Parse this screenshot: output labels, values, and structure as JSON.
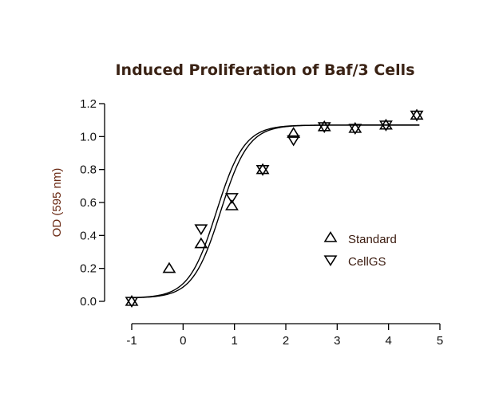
{
  "chart_data": {
    "type": "scatter",
    "title": "Induced Proliferation of Baf/3 Cells",
    "xlabel": "",
    "ylabel": "OD (595 nm)",
    "xlim": [
      -1,
      5
    ],
    "ylim": [
      0,
      1.2
    ],
    "x_ticks": [
      "-1",
      "0",
      "1",
      "2",
      "3",
      "4",
      "5"
    ],
    "y_ticks": [
      "0.0",
      "0.2",
      "0.4",
      "0.6",
      "0.8",
      "1.0",
      "1.2"
    ],
    "legend_position": "right",
    "series": [
      {
        "name": "Standard",
        "marker": "triangle-up",
        "points": [
          {
            "x": -1.0,
            "y": 0.0
          },
          {
            "x": -0.27,
            "y": 0.2
          },
          {
            "x": 0.35,
            "y": 0.35
          },
          {
            "x": 0.95,
            "y": 0.58
          },
          {
            "x": 1.55,
            "y": 0.8
          },
          {
            "x": 2.15,
            "y": 1.02
          },
          {
            "x": 2.75,
            "y": 1.06
          },
          {
            "x": 3.35,
            "y": 1.05
          },
          {
            "x": 3.95,
            "y": 1.07
          },
          {
            "x": 4.55,
            "y": 1.13
          }
        ],
        "fit": {
          "bottom": 0.02,
          "top": 1.07,
          "logEC50": 0.65,
          "hill": 1.6
        }
      },
      {
        "name": "CellGS",
        "marker": "triangle-down",
        "points": [
          {
            "x": -1.0,
            "y": 0.0
          },
          {
            "x": 0.35,
            "y": 0.44
          },
          {
            "x": 0.95,
            "y": 0.63
          },
          {
            "x": 1.55,
            "y": 0.8
          },
          {
            "x": 2.15,
            "y": 0.98
          },
          {
            "x": 2.75,
            "y": 1.06
          },
          {
            "x": 3.35,
            "y": 1.05
          },
          {
            "x": 3.95,
            "y": 1.07
          },
          {
            "x": 4.55,
            "y": 1.13
          }
        ],
        "fit": {
          "bottom": 0.02,
          "top": 1.07,
          "logEC50": 0.73,
          "hill": 1.6
        }
      }
    ]
  }
}
